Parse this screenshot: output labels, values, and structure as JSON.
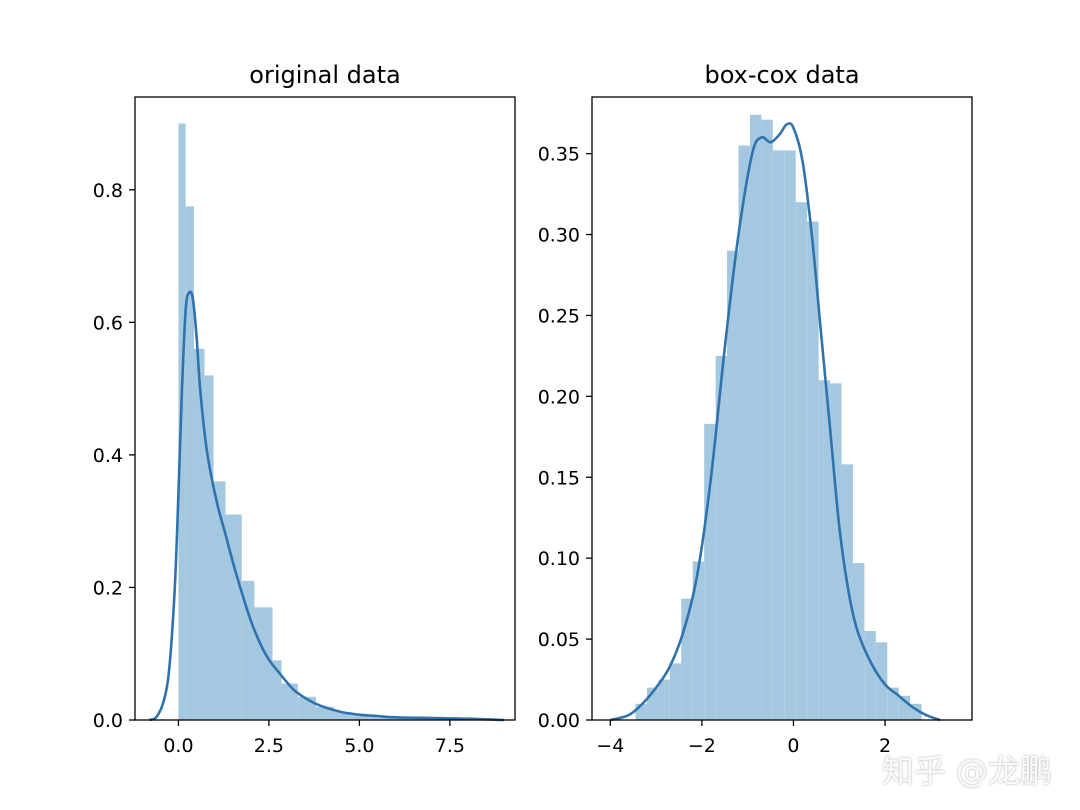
{
  "watermark": "知乎 @龙鹏",
  "chart_data": [
    {
      "type": "bar",
      "title": "original data",
      "xlim": [
        -1.2,
        9.3
      ],
      "ylim": [
        0,
        0.94
      ],
      "xticks": [
        0.0,
        2.5,
        5.0,
        7.5
      ],
      "xtick_labels": [
        "0.0",
        "2.5",
        "5.0",
        "7.5"
      ],
      "yticks": [
        0.0,
        0.2,
        0.4,
        0.6,
        0.8
      ],
      "ytick_labels": [
        "0.0",
        "0.2",
        "0.4",
        "0.6",
        "0.8"
      ],
      "bar_color": "#a5c8e1",
      "kde_color": "#2f73ad",
      "bins": [
        {
          "x0": 0.0,
          "x1": 0.2,
          "height": 0.9
        },
        {
          "x0": 0.2,
          "x1": 0.43,
          "height": 0.775
        },
        {
          "x0": 0.43,
          "x1": 0.72,
          "height": 0.56
        },
        {
          "x0": 0.72,
          "x1": 0.97,
          "height": 0.52
        },
        {
          "x0": 0.97,
          "x1": 1.3,
          "height": 0.36
        },
        {
          "x0": 1.3,
          "x1": 1.75,
          "height": 0.31
        },
        {
          "x0": 1.75,
          "x1": 2.1,
          "height": 0.21
        },
        {
          "x0": 2.1,
          "x1": 2.6,
          "height": 0.17
        },
        {
          "x0": 2.6,
          "x1": 2.85,
          "height": 0.09
        },
        {
          "x0": 2.85,
          "x1": 3.3,
          "height": 0.055
        },
        {
          "x0": 3.3,
          "x1": 3.8,
          "height": 0.035
        },
        {
          "x0": 3.8,
          "x1": 4.3,
          "height": 0.02
        },
        {
          "x0": 4.3,
          "x1": 4.8,
          "height": 0.012
        },
        {
          "x0": 4.8,
          "x1": 5.3,
          "height": 0.008
        },
        {
          "x0": 5.3,
          "x1": 6.0,
          "height": 0.005
        },
        {
          "x0": 6.0,
          "x1": 7.5,
          "height": 0.003
        },
        {
          "x0": 7.5,
          "x1": 9.0,
          "height": 0.001
        }
      ],
      "kde": {
        "x": [
          -0.8,
          -0.6,
          -0.4,
          -0.25,
          -0.1,
          0.0,
          0.1,
          0.2,
          0.3,
          0.4,
          0.5,
          0.6,
          0.75,
          0.9,
          1.1,
          1.3,
          1.6,
          2.0,
          2.4,
          2.8,
          3.2,
          3.6,
          4.0,
          4.5,
          5.0,
          5.5,
          6.0,
          7.0,
          8.0,
          9.0
        ],
        "y": [
          0.0,
          0.005,
          0.03,
          0.08,
          0.2,
          0.34,
          0.5,
          0.62,
          0.645,
          0.635,
          0.58,
          0.5,
          0.42,
          0.37,
          0.32,
          0.28,
          0.22,
          0.15,
          0.1,
          0.07,
          0.045,
          0.03,
          0.02,
          0.012,
          0.008,
          0.006,
          0.004,
          0.003,
          0.002,
          0.0
        ]
      }
    },
    {
      "type": "bar",
      "title": "box-cox data",
      "xlim": [
        -4.4,
        3.9
      ],
      "ylim": [
        0,
        0.385
      ],
      "xticks": [
        -4,
        -2,
        0,
        2
      ],
      "xtick_labels": [
        "−4",
        "−2",
        "0",
        "2"
      ],
      "yticks": [
        0.0,
        0.05,
        0.1,
        0.15,
        0.2,
        0.25,
        0.3,
        0.35
      ],
      "ytick_labels": [
        "0.00",
        "0.05",
        "0.10",
        "0.15",
        "0.20",
        "0.25",
        "0.30",
        "0.35"
      ],
      "bar_color": "#a5c8e1",
      "kde_color": "#2f73ad",
      "bins": [
        {
          "x0": -3.45,
          "x1": -3.2,
          "height": 0.01
        },
        {
          "x0": -3.2,
          "x1": -2.95,
          "height": 0.02
        },
        {
          "x0": -2.95,
          "x1": -2.7,
          "height": 0.025
        },
        {
          "x0": -2.7,
          "x1": -2.45,
          "height": 0.035
        },
        {
          "x0": -2.45,
          "x1": -2.2,
          "height": 0.075
        },
        {
          "x0": -2.2,
          "x1": -1.95,
          "height": 0.098
        },
        {
          "x0": -1.95,
          "x1": -1.7,
          "height": 0.183
        },
        {
          "x0": -1.7,
          "x1": -1.45,
          "height": 0.225
        },
        {
          "x0": -1.45,
          "x1": -1.2,
          "height": 0.29
        },
        {
          "x0": -1.2,
          "x1": -0.95,
          "height": 0.355
        },
        {
          "x0": -0.95,
          "x1": -0.7,
          "height": 0.374
        },
        {
          "x0": -0.7,
          "x1": -0.45,
          "height": 0.371
        },
        {
          "x0": -0.45,
          "x1": -0.2,
          "height": 0.352
        },
        {
          "x0": -0.2,
          "x1": 0.05,
          "height": 0.352
        },
        {
          "x0": 0.05,
          "x1": 0.3,
          "height": 0.32
        },
        {
          "x0": 0.3,
          "x1": 0.55,
          "height": 0.308
        },
        {
          "x0": 0.55,
          "x1": 0.8,
          "height": 0.21
        },
        {
          "x0": 0.8,
          "x1": 1.05,
          "height": 0.208
        },
        {
          "x0": 1.05,
          "x1": 1.3,
          "height": 0.158
        },
        {
          "x0": 1.3,
          "x1": 1.55,
          "height": 0.097
        },
        {
          "x0": 1.55,
          "x1": 1.8,
          "height": 0.055
        },
        {
          "x0": 1.8,
          "x1": 2.05,
          "height": 0.048
        },
        {
          "x0": 2.05,
          "x1": 2.3,
          "height": 0.02
        },
        {
          "x0": 2.3,
          "x1": 2.55,
          "height": 0.015
        },
        {
          "x0": 2.55,
          "x1": 2.8,
          "height": 0.01
        }
      ],
      "kde": {
        "x": [
          -4.0,
          -3.6,
          -3.3,
          -3.0,
          -2.7,
          -2.4,
          -2.1,
          -1.8,
          -1.5,
          -1.2,
          -0.9,
          -0.7,
          -0.5,
          -0.3,
          -0.15,
          0.0,
          0.2,
          0.4,
          0.6,
          0.8,
          1.0,
          1.2,
          1.4,
          1.7,
          2.0,
          2.3,
          2.6,
          2.9,
          3.2
        ],
        "y": [
          0.0,
          0.003,
          0.01,
          0.02,
          0.033,
          0.055,
          0.09,
          0.15,
          0.23,
          0.3,
          0.35,
          0.36,
          0.357,
          0.362,
          0.368,
          0.366,
          0.345,
          0.3,
          0.24,
          0.18,
          0.12,
          0.08,
          0.055,
          0.035,
          0.022,
          0.015,
          0.008,
          0.003,
          0.0
        ]
      }
    }
  ]
}
